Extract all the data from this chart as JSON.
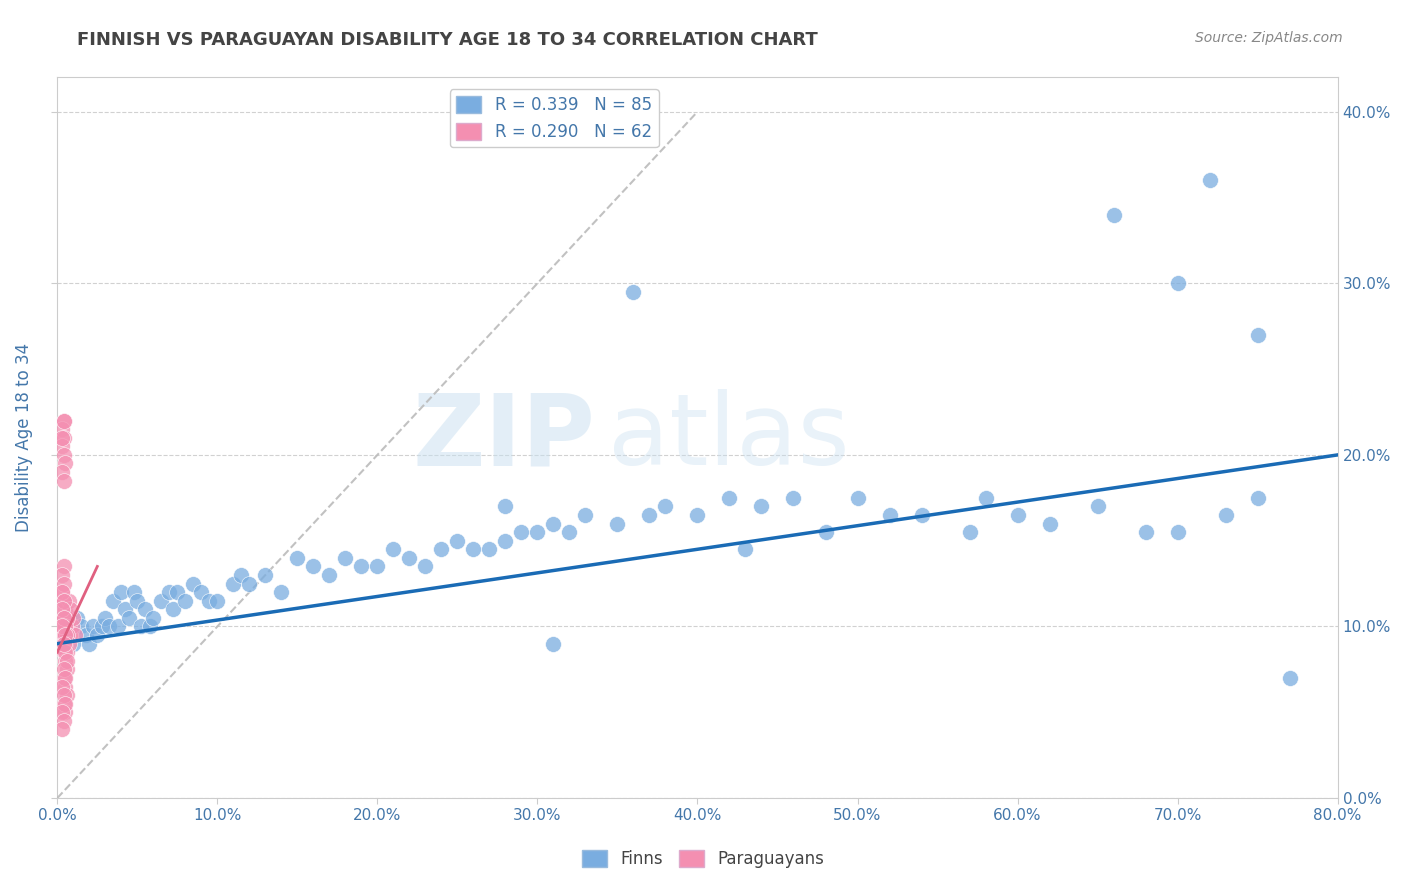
{
  "title": "FINNISH VS PARAGUAYAN DISABILITY AGE 18 TO 34 CORRELATION CHART",
  "source": "Source: ZipAtlas.com",
  "ylabel": "Disability Age 18 to 34",
  "xlim": [
    0.0,
    0.8
  ],
  "ylim": [
    0.0,
    0.42
  ],
  "legend_blue_r": "R = 0.339",
  "legend_blue_n": "N = 85",
  "legend_pink_r": "R = 0.290",
  "legend_pink_n": "N = 62",
  "watermark_zip": "ZIP",
  "watermark_atlas": "atlas",
  "blue_color": "#7aade0",
  "pink_color": "#f48fb1",
  "blue_line_color": "#1a6bb5",
  "pink_line_color": "#e06080",
  "diag_line_color": "#bbbbbb",
  "background_color": "#ffffff",
  "grid_color": "#cccccc",
  "title_color": "#444444",
  "axis_label_color": "#4477aa",
  "tick_color": "#4477aa",
  "finns_x": [
    0.005,
    0.008,
    0.01,
    0.012,
    0.015,
    0.018,
    0.02,
    0.022,
    0.025,
    0.028,
    0.03,
    0.032,
    0.035,
    0.038,
    0.04,
    0.042,
    0.045,
    0.048,
    0.05,
    0.052,
    0.055,
    0.058,
    0.06,
    0.065,
    0.07,
    0.072,
    0.075,
    0.08,
    0.085,
    0.09,
    0.095,
    0.1,
    0.11,
    0.115,
    0.12,
    0.13,
    0.14,
    0.15,
    0.16,
    0.17,
    0.18,
    0.19,
    0.2,
    0.21,
    0.22,
    0.23,
    0.24,
    0.25,
    0.26,
    0.27,
    0.28,
    0.29,
    0.3,
    0.31,
    0.32,
    0.33,
    0.35,
    0.37,
    0.38,
    0.4,
    0.42,
    0.44,
    0.46,
    0.48,
    0.5,
    0.52,
    0.54,
    0.57,
    0.6,
    0.62,
    0.65,
    0.68,
    0.7,
    0.73,
    0.75,
    0.58,
    0.43,
    0.36,
    0.31,
    0.28,
    0.66,
    0.7,
    0.72,
    0.75,
    0.77
  ],
  "finns_y": [
    0.095,
    0.1,
    0.09,
    0.105,
    0.1,
    0.095,
    0.09,
    0.1,
    0.095,
    0.1,
    0.105,
    0.1,
    0.115,
    0.1,
    0.12,
    0.11,
    0.105,
    0.12,
    0.115,
    0.1,
    0.11,
    0.1,
    0.105,
    0.115,
    0.12,
    0.11,
    0.12,
    0.115,
    0.125,
    0.12,
    0.115,
    0.115,
    0.125,
    0.13,
    0.125,
    0.13,
    0.12,
    0.14,
    0.135,
    0.13,
    0.14,
    0.135,
    0.135,
    0.145,
    0.14,
    0.135,
    0.145,
    0.15,
    0.145,
    0.145,
    0.15,
    0.155,
    0.155,
    0.16,
    0.155,
    0.165,
    0.16,
    0.165,
    0.17,
    0.165,
    0.175,
    0.17,
    0.175,
    0.155,
    0.175,
    0.165,
    0.165,
    0.155,
    0.165,
    0.16,
    0.17,
    0.155,
    0.155,
    0.165,
    0.175,
    0.175,
    0.145,
    0.295,
    0.09,
    0.17,
    0.34,
    0.3,
    0.36,
    0.27,
    0.07
  ],
  "paraguayans_x": [
    0.002,
    0.003,
    0.004,
    0.005,
    0.006,
    0.007,
    0.008,
    0.009,
    0.01,
    0.011,
    0.003,
    0.004,
    0.005,
    0.006,
    0.007,
    0.008,
    0.003,
    0.004,
    0.005,
    0.006,
    0.004,
    0.005,
    0.006,
    0.007,
    0.004,
    0.005,
    0.006,
    0.004,
    0.005,
    0.006,
    0.004,
    0.005,
    0.005,
    0.006,
    0.004,
    0.005,
    0.003,
    0.004,
    0.005,
    0.003,
    0.004,
    0.003,
    0.004,
    0.003,
    0.004,
    0.003,
    0.004,
    0.005,
    0.003,
    0.004,
    0.004,
    0.003,
    0.004,
    0.003,
    0.004,
    0.003,
    0.004,
    0.003,
    0.005,
    0.004,
    0.004,
    0.003
  ],
  "paraguayans_y": [
    0.095,
    0.1,
    0.095,
    0.09,
    0.105,
    0.1,
    0.095,
    0.1,
    0.105,
    0.095,
    0.12,
    0.115,
    0.11,
    0.105,
    0.115,
    0.11,
    0.1,
    0.095,
    0.09,
    0.085,
    0.105,
    0.1,
    0.095,
    0.09,
    0.085,
    0.08,
    0.075,
    0.07,
    0.065,
    0.06,
    0.055,
    0.05,
    0.085,
    0.08,
    0.075,
    0.07,
    0.065,
    0.06,
    0.055,
    0.05,
    0.045,
    0.04,
    0.22,
    0.215,
    0.21,
    0.205,
    0.2,
    0.195,
    0.19,
    0.185,
    0.135,
    0.13,
    0.125,
    0.12,
    0.115,
    0.11,
    0.105,
    0.1,
    0.095,
    0.09,
    0.22,
    0.21
  ]
}
